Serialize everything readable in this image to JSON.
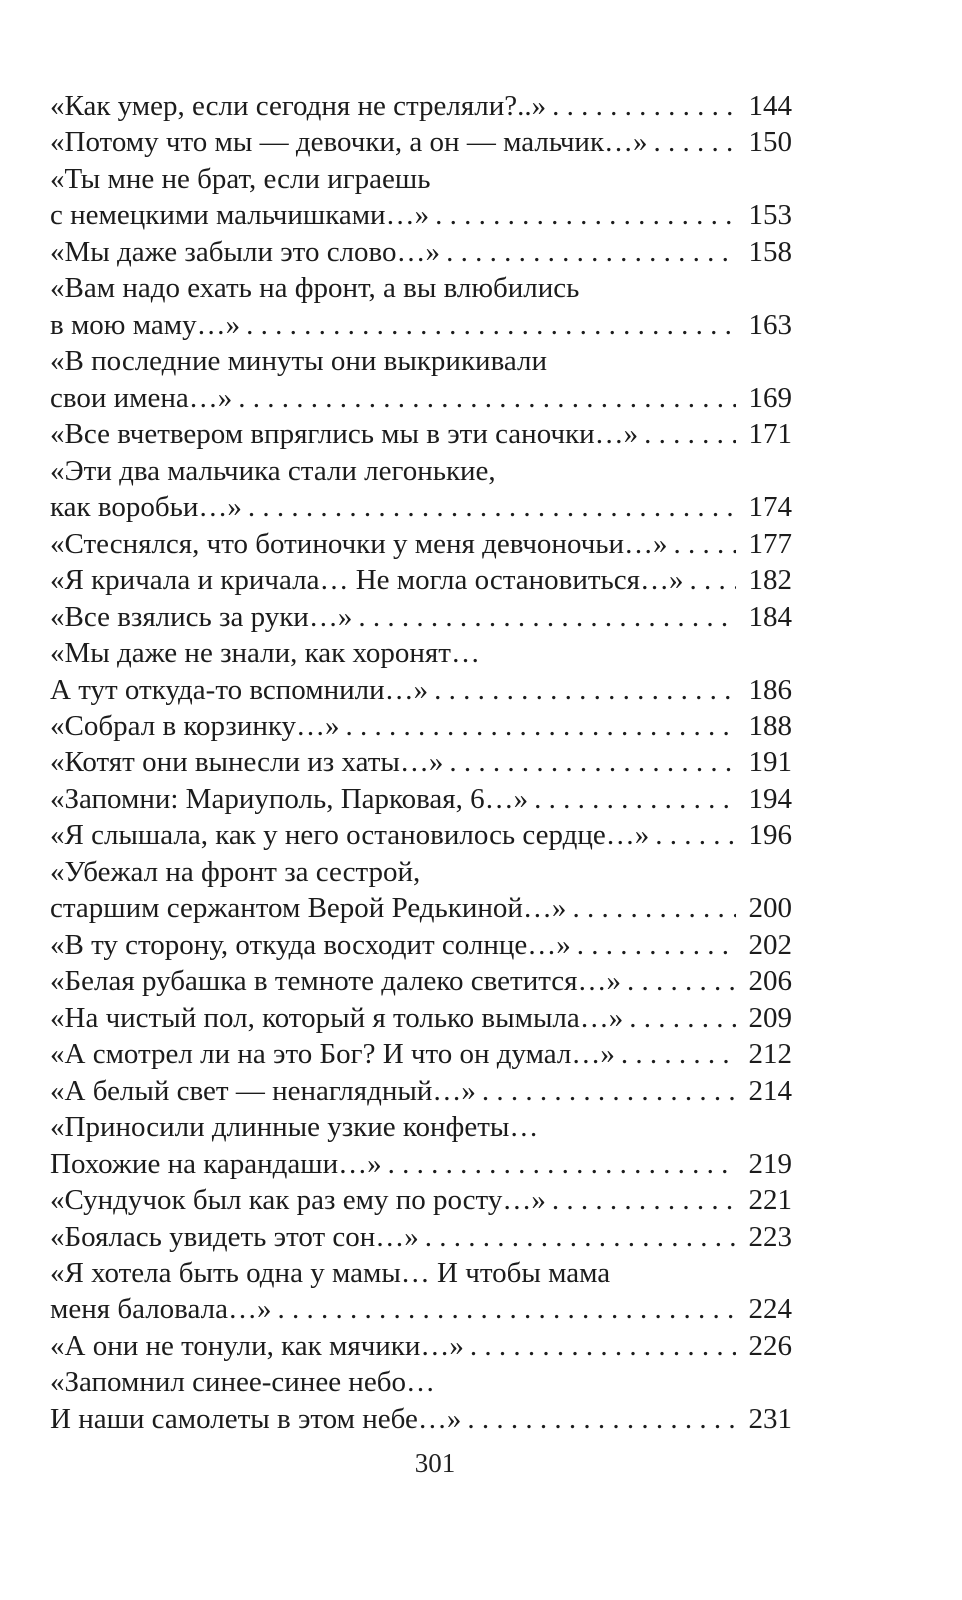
{
  "toc": {
    "entries": [
      {
        "lines": [
          "«Как умер, если сегодня не стреляли?..»"
        ],
        "page": "144"
      },
      {
        "lines": [
          "«Потому что мы — девочки, а он — мальчик…»"
        ],
        "page": "150"
      },
      {
        "lines": [
          "«Ты мне не брат, если играешь",
          "с немецкими мальчишками…»"
        ],
        "page": "153"
      },
      {
        "lines": [
          "«Мы даже забыли это слово…»"
        ],
        "page": "158"
      },
      {
        "lines": [
          "«Вам надо ехать на фронт, а вы влюбились",
          "в мою маму…»"
        ],
        "page": "163"
      },
      {
        "lines": [
          "«В последние минуты они выкрикивали",
          "свои имена…»"
        ],
        "page": "169"
      },
      {
        "lines": [
          "«Все вчетвером впряглись мы в эти саночки…»"
        ],
        "page": "171"
      },
      {
        "lines": [
          "«Эти два мальчика стали легонькие,",
          "как воробьи…»"
        ],
        "page": "174"
      },
      {
        "lines": [
          "«Стеснялся, что ботиночки у меня девчоночьи…»"
        ],
        "page": "177"
      },
      {
        "lines": [
          "«Я кричала и кричала… Не могла остановиться…»"
        ],
        "page": "182"
      },
      {
        "lines": [
          "«Все взялись за руки…»"
        ],
        "page": "184"
      },
      {
        "lines": [
          "«Мы даже не знали, как хоронят…",
          "А тут откуда-то вспомнили…»"
        ],
        "page": "186"
      },
      {
        "lines": [
          "«Собрал в корзинку…»"
        ],
        "page": "188"
      },
      {
        "lines": [
          "«Котят они вынесли из хаты…»"
        ],
        "page": "191"
      },
      {
        "lines": [
          "«Запомни: Мариуполь, Парковая, 6…»"
        ],
        "page": "194"
      },
      {
        "lines": [
          "«Я слышала, как у него остановилось сердце…»"
        ],
        "page": "196"
      },
      {
        "lines": [
          "«Убежал на фронт за сестрой,",
          "старшим сержантом Верой Редькиной…»"
        ],
        "page": "200"
      },
      {
        "lines": [
          "«В ту сторону, откуда восходит солнце…»"
        ],
        "page": "202"
      },
      {
        "lines": [
          "«Белая рубашка в темноте далеко светится…»"
        ],
        "page": "206"
      },
      {
        "lines": [
          "«На чистый пол, который я только вымыла…»"
        ],
        "page": "209"
      },
      {
        "lines": [
          "«А смотрел ли на это Бог? И что он думал…»"
        ],
        "page": "212"
      },
      {
        "lines": [
          "«А белый свет — ненаглядный…»"
        ],
        "page": "214"
      },
      {
        "lines": [
          "«Приносили длинные узкие конфеты…",
          "Похожие на карандаши…»"
        ],
        "page": "219"
      },
      {
        "lines": [
          "«Сундучок был как раз ему по росту…»"
        ],
        "page": "221"
      },
      {
        "lines": [
          "«Боялась увидеть этот сон…»"
        ],
        "page": "223"
      },
      {
        "lines": [
          "«Я хотела быть одна у мамы… И чтобы мама",
          "меня баловала…»"
        ],
        "page": "224"
      },
      {
        "lines": [
          "«А они не тонули, как мячики…»"
        ],
        "page": "226"
      },
      {
        "lines": [
          "«Запомнил синее-синее небо…",
          "И наши самолеты в этом небе…»"
        ],
        "page": "231"
      }
    ]
  },
  "page_number": "301"
}
